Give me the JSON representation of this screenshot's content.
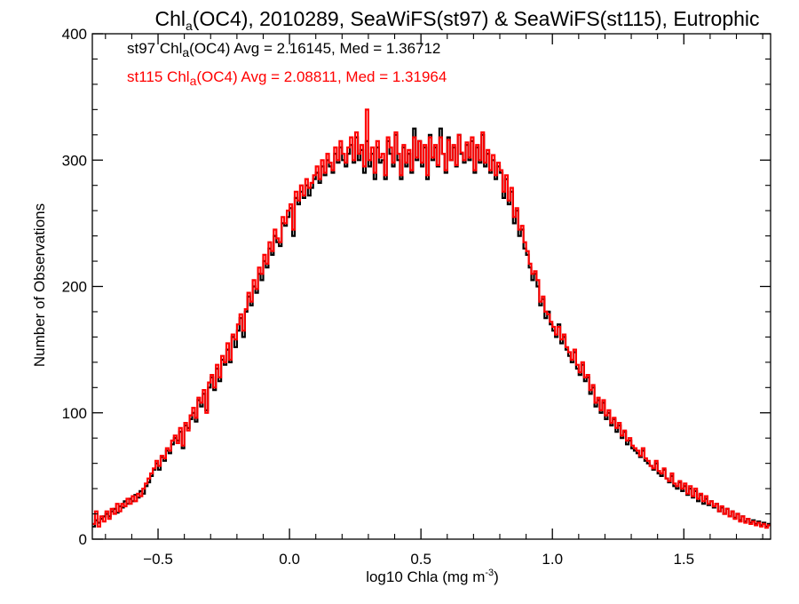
{
  "chart_data": {
    "type": "histogram",
    "title": {
      "prefix": "Chl",
      "sub": "a",
      "suffix": "(OC4), 2010289, SeaWiFS(st97) & SeaWiFS(st115), Eutrophic"
    },
    "xlabel": {
      "text": "log10 Chla (mg m",
      "sup": "-3",
      "close": ")"
    },
    "ylabel": "Number of Observations",
    "xlim": [
      -0.75,
      1.83
    ],
    "ylim": [
      0,
      400
    ],
    "xticks": [
      -0.5,
      0.0,
      0.5,
      1.0,
      1.5
    ],
    "xtick_labels": [
      "−0.5",
      "0.0",
      "0.5",
      "1.0",
      "1.5"
    ],
    "yticks": [
      0,
      100,
      200,
      300,
      400
    ],
    "ytick_labels": [
      "0",
      "100",
      "200",
      "300",
      "400"
    ],
    "bin_width": 0.01,
    "series": [
      {
        "name": "st97",
        "color": "#000000",
        "legend": {
          "prefix": "st97 Chl",
          "sub": "a",
          "suffix": "(OC4) Avg = 2.16145, Med = 1.36712"
        },
        "avg": 2.16145,
        "median": 1.36712,
        "x_start": -0.75,
        "values": [
          10,
          15,
          13,
          16,
          18,
          20,
          18,
          22,
          24,
          21,
          26,
          25,
          30,
          28,
          32,
          30,
          35,
          33,
          38,
          36,
          42,
          45,
          50,
          55,
          60,
          55,
          65,
          62,
          70,
          68,
          75,
          80,
          78,
          85,
          72,
          90,
          88,
          95,
          100,
          93,
          110,
          105,
          115,
          102,
          120,
          128,
          118,
          135,
          125,
          142,
          138,
          150,
          140,
          160,
          152,
          165,
          175,
          160,
          180,
          192,
          185,
          200,
          195,
          210,
          205,
          220,
          215,
          230,
          225,
          240,
          235,
          232,
          250,
          248,
          255,
          262,
          240,
          270,
          265,
          275,
          270,
          280,
          272,
          278,
          285,
          290,
          282,
          295,
          288,
          300,
          295,
          290,
          305,
          298,
          310,
          300,
          295,
          305,
          312,
          298,
          318,
          300,
          308,
          290,
          315,
          295,
          305,
          285,
          310,
          298,
          300,
          285,
          315,
          305,
          295,
          320,
          300,
          285,
          310,
          295,
          305,
          290,
          325,
          300,
          315,
          295,
          310,
          285,
          320,
          300,
          310,
          295,
          325,
          305,
          290,
          318,
          300,
          310,
          295,
          320,
          305,
          298,
          312,
          300,
          315,
          290,
          310,
          298,
          320,
          295,
          305,
          290,
          300,
          285,
          295,
          290,
          270,
          285,
          265,
          275,
          250,
          260,
          240,
          245,
          230,
          225,
          215,
          205,
          210,
          200,
          185,
          190,
          175,
          180,
          170,
          165,
          160,
          170,
          155,
          160,
          150,
          145,
          140,
          148,
          135,
          130,
          138,
          125,
          128,
          115,
          120,
          105,
          110,
          100,
          108,
          95,
          100,
          90,
          95,
          85,
          90,
          80,
          85,
          75,
          78,
          72,
          70,
          68,
          65,
          70,
          62,
          60,
          58,
          55,
          60,
          52,
          50,
          55,
          48,
          45,
          50,
          42,
          40,
          45,
          38,
          42,
          35,
          40,
          33,
          38,
          30,
          35,
          28,
          32,
          27,
          30,
          25,
          28,
          22,
          25,
          20,
          24,
          18,
          22,
          17,
          20,
          15,
          18,
          14,
          16,
          13,
          15,
          12,
          14,
          11,
          13,
          10,
          12,
          9,
          11,
          8,
          10,
          8,
          9,
          7,
          8,
          6,
          7,
          6,
          6,
          5,
          5,
          4,
          5,
          4,
          4,
          3,
          4,
          3,
          3,
          2,
          3,
          2,
          2,
          2,
          1,
          2,
          1,
          1,
          1,
          1,
          1,
          0,
          1,
          0,
          0,
          1,
          0
        ]
      },
      {
        "name": "st115",
        "color": "#ff0000",
        "legend": {
          "prefix": "st115 Chl",
          "sub": "a",
          "suffix": "(OC4) Avg = 2.08811, Med = 1.31964"
        },
        "avg": 2.08811,
        "median": 1.31964,
        "x_start": -0.75,
        "values": [
          12,
          22,
          10,
          18,
          14,
          22,
          16,
          24,
          20,
          28,
          22,
          28,
          26,
          32,
          28,
          34,
          30,
          36,
          34,
          40,
          44,
          48,
          52,
          56,
          62,
          58,
          66,
          64,
          72,
          70,
          78,
          82,
          76,
          88,
          74,
          92,
          86,
          98,
          104,
          96,
          112,
          108,
          118,
          100,
          124,
          130,
          120,
          138,
          128,
          145,
          140,
          155,
          142,
          162,
          158,
          170,
          178,
          165,
          182,
          195,
          188,
          205,
          198,
          215,
          210,
          225,
          218,
          235,
          228,
          245,
          238,
          235,
          255,
          250,
          260,
          265,
          245,
          275,
          268,
          280,
          272,
          285,
          278,
          282,
          288,
          295,
          285,
          300,
          290,
          305,
          298,
          292,
          310,
          300,
          315,
          305,
          298,
          310,
          318,
          300,
          322,
          305,
          312,
          295,
          340,
          300,
          310,
          290,
          315,
          302,
          305,
          288,
          318,
          310,
          298,
          322,
          305,
          288,
          312,
          298,
          308,
          292,
          318,
          302,
          315,
          298,
          312,
          288,
          318,
          302,
          312,
          296,
          318,
          305,
          292,
          316,
          300,
          312,
          296,
          320,
          306,
          300,
          314,
          302,
          318,
          292,
          312,
          300,
          322,
          298,
          308,
          292,
          304,
          288,
          298,
          292,
          275,
          288,
          268,
          278,
          255,
          262,
          245,
          248,
          235,
          228,
          218,
          210,
          212,
          205,
          188,
          192,
          180,
          178,
          172,
          168,
          162,
          168,
          158,
          162,
          152,
          148,
          142,
          150,
          138,
          132,
          140,
          128,
          130,
          118,
          122,
          108,
          112,
          102,
          110,
          98,
          102,
          92,
          96,
          88,
          92,
          82,
          86,
          78,
          80,
          74,
          72,
          70,
          66,
          72,
          64,
          62,
          58,
          56,
          62,
          54,
          52,
          56,
          48,
          46,
          52,
          44,
          42,
          46,
          40,
          44,
          36,
          42,
          34,
          40,
          32,
          36,
          30,
          34,
          28,
          30,
          26,
          28,
          22,
          26,
          20,
          24,
          18,
          22,
          16,
          20,
          14,
          18,
          13,
          16,
          12,
          14,
          11,
          13,
          10,
          12,
          9,
          11,
          8,
          10,
          7,
          9,
          7,
          8,
          6,
          7,
          5,
          6,
          5,
          5,
          4,
          4,
          3,
          4,
          3,
          3,
          2,
          3,
          2,
          2,
          2,
          1,
          2,
          1,
          1,
          1,
          1,
          1,
          1,
          0,
          0,
          1,
          0,
          0
        ]
      }
    ],
    "grid": false,
    "legend_position": "top-left"
  }
}
